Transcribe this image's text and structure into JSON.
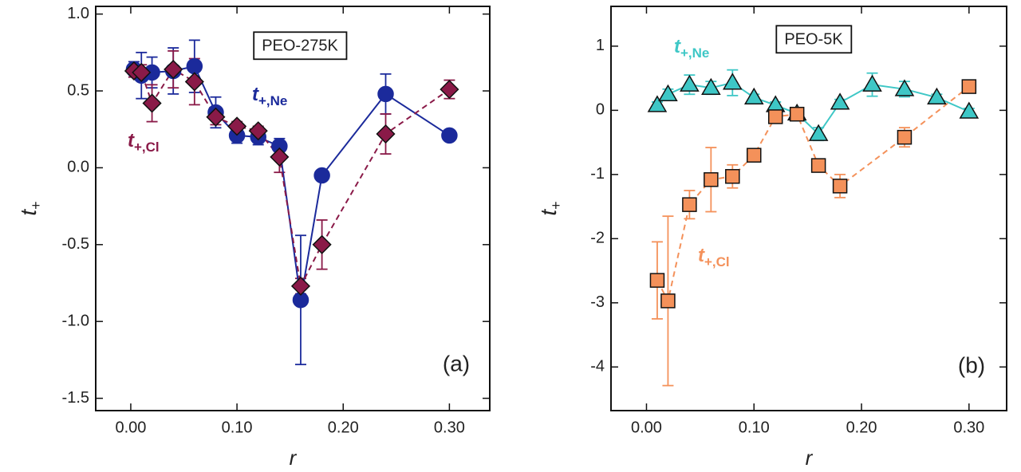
{
  "chart_data": [
    {
      "type": "line",
      "xlabel": "r",
      "ylabel": {
        "text": "t",
        "sub": "+"
      },
      "xlim": [
        -0.033,
        0.338
      ],
      "ylim": [
        -1.58,
        1.05
      ],
      "xticks": [
        {
          "value": 0,
          "label": "0.00"
        },
        {
          "value": 0.1,
          "label": "0.10"
        },
        {
          "value": 0.2,
          "label": "0.20"
        },
        {
          "value": 0.3,
          "label": "0.30"
        }
      ],
      "yticks": [
        {
          "value": 1,
          "label": "1.0"
        },
        0.5,
        {
          "value": 0,
          "label": "0.0"
        },
        -0.5,
        {
          "value": -1,
          "label": "-1.0"
        },
        -1.5
      ],
      "series": [
        {
          "color": "#1b2a9b",
          "marker": "circle",
          "linestyle": "solid",
          "x": [
            0.003,
            0.01,
            0.02,
            0.04,
            0.06,
            0.08,
            0.1,
            0.12,
            0.14,
            0.16,
            0.18,
            0.24,
            0.3
          ],
          "values": [
            0.64,
            0.6,
            0.62,
            0.63,
            0.66,
            0.36,
            0.21,
            0.2,
            0.14,
            -0.86,
            -0.05,
            0.48,
            0.21
          ],
          "errors": [
            0.05,
            0.15,
            0.1,
            0.15,
            0.17,
            0.1,
            0.05,
            0.05,
            0.05,
            0.42,
            0.03,
            0.13,
            0.03
          ]
        },
        {
          "color": "#8a1a48",
          "marker": "diamond",
          "linestyle": "dashed",
          "x": [
            0.003,
            0.01,
            0.02,
            0.04,
            0.06,
            0.08,
            0.1,
            0.12,
            0.14,
            0.16,
            0.18,
            0.24,
            0.3
          ],
          "values": [
            0.63,
            0.62,
            0.42,
            0.64,
            0.56,
            0.33,
            0.27,
            0.24,
            0.07,
            -0.77,
            -0.5,
            0.22,
            0.51
          ],
          "errors": [
            0.04,
            0.05,
            0.12,
            0.12,
            0.15,
            0.05,
            0.03,
            0.03,
            0.1,
            0.05,
            0.16,
            0.13,
            0.06
          ]
        }
      ],
      "annotations": [
        {
          "text": "PEO-275K",
          "boxed": true
        },
        {
          "text": "(a)"
        },
        {
          "text": "t",
          "sub": "+,Ne",
          "color": "#1b2a9b"
        },
        {
          "text": "t",
          "sub": "+,Cl",
          "color": "#8a1a48"
        }
      ]
    },
    {
      "type": "line",
      "xlabel": "r",
      "ylabel": {
        "text": "t",
        "sub": "+"
      },
      "xlim": [
        -0.033,
        0.335
      ],
      "ylim": [
        -4.68,
        1.62
      ],
      "xticks": [
        {
          "value": 0,
          "label": "0.00"
        },
        {
          "value": 0.1,
          "label": "0.10"
        },
        {
          "value": 0.2,
          "label": "0.20"
        },
        {
          "value": 0.3,
          "label": "0.30"
        }
      ],
      "yticks": [
        1,
        0,
        -1,
        -2,
        -3,
        -4
      ],
      "series": [
        {
          "color": "#3ec7c6",
          "marker": "triangle",
          "linestyle": "solid",
          "x": [
            0.01,
            0.02,
            0.04,
            0.06,
            0.08,
            0.1,
            0.12,
            0.14,
            0.16,
            0.18,
            0.21,
            0.24,
            0.27,
            0.3
          ],
          "values": [
            0.08,
            0.25,
            0.4,
            0.35,
            0.43,
            0.2,
            0.08,
            -0.05,
            -0.37,
            0.12,
            0.4,
            0.33,
            0.2,
            -0.02
          ],
          "errors": [
            0.05,
            0.08,
            0.15,
            0.1,
            0.2,
            0.05,
            0.05,
            0.05,
            0.1,
            0.05,
            0.18,
            0.12,
            0.05,
            0.05
          ]
        },
        {
          "color": "#f4915a",
          "marker": "square",
          "linestyle": "dashed",
          "x": [
            0.01,
            0.02,
            0.04,
            0.06,
            0.08,
            0.1,
            0.12,
            0.14,
            0.16,
            0.18,
            0.24,
            0.3
          ],
          "values": [
            -2.65,
            -2.97,
            -1.47,
            -1.08,
            -1.03,
            -0.7,
            -0.1,
            -0.06,
            -0.86,
            -1.18,
            -0.42,
            0.37
          ],
          "errors": [
            0.6,
            1.32,
            0.22,
            0.5,
            0.18,
            0.05,
            0.05,
            0.05,
            0.05,
            0.18,
            0.15,
            0.05
          ]
        }
      ],
      "annotations": [
        {
          "text": "PEO-5K",
          "boxed": true
        },
        {
          "text": "(b)"
        },
        {
          "text": "t",
          "sub": "+,Ne",
          "color": "#3ec7c6"
        },
        {
          "text": "t",
          "sub": "+,Cl",
          "color": "#f4915a"
        }
      ]
    }
  ]
}
